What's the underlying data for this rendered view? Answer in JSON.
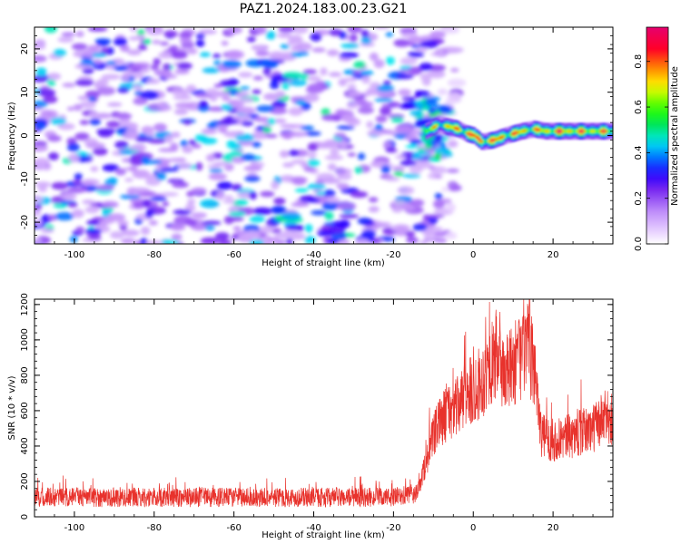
{
  "title": "PAZ1.2024.183.00.23.G21",
  "chart_data": [
    {
      "type": "heatmap",
      "xlabel": "Height of straight line (km)",
      "ylabel": "Frequency (Hz)",
      "xlim": [
        -110,
        35
      ],
      "ylim": [
        -25,
        25
      ],
      "x_ticks": [
        -100,
        -80,
        -60,
        -40,
        -20,
        0,
        20
      ],
      "y_ticks": [
        -20,
        -10,
        0,
        10,
        20
      ],
      "colorbar": {
        "label": "Normalized spectral amplitude",
        "range": [
          0.0,
          0.95
        ],
        "ticks": [
          0.0,
          0.2,
          0.4,
          0.6,
          0.8
        ],
        "tick_labels": [
          "0.0",
          "0.2",
          "0.4",
          "0.6",
          "0.8"
        ],
        "colormap": "gist_ncar_r"
      },
      "features": {
        "noise_region_x": [
          -110,
          -8
        ],
        "noise_amplitude": [
          0.1,
          0.5
        ],
        "signal_track": [
          [
            -12,
            1.0,
            0.7
          ],
          [
            -9,
            2.5,
            0.75
          ],
          [
            -6,
            2.0,
            0.8
          ],
          [
            -4,
            1.5,
            0.85
          ],
          [
            -2,
            0.5,
            0.9
          ],
          [
            0,
            0.0,
            0.95
          ],
          [
            2,
            -1.5,
            0.9
          ],
          [
            5,
            -1.0,
            0.9
          ],
          [
            8,
            0.0,
            0.85
          ],
          [
            12,
            1.0,
            0.85
          ],
          [
            15,
            1.5,
            0.8
          ],
          [
            18,
            1.0,
            0.85
          ],
          [
            22,
            1.0,
            0.9
          ],
          [
            26,
            1.0,
            0.85
          ],
          [
            30,
            1.0,
            0.85
          ],
          [
            35,
            1.0,
            0.8
          ]
        ]
      }
    },
    {
      "type": "line",
      "xlabel": "Height of straight line (km)",
      "ylabel": "SNR (10 * v/v)",
      "xlim": [
        -110,
        35
      ],
      "ylim": [
        0,
        1230
      ],
      "x_ticks": [
        -100,
        -80,
        -60,
        -40,
        -20,
        0,
        20
      ],
      "y_ticks": [
        0,
        200,
        400,
        600,
        800,
        1000,
        1200
      ],
      "color": "#e8322c",
      "envelope": {
        "x": [
          -110,
          -20,
          -14,
          -12,
          -10,
          -8,
          -6,
          -4,
          -2,
          0,
          2,
          4,
          6,
          8,
          10,
          12,
          14,
          16,
          17,
          20,
          25,
          30,
          33,
          35
        ],
        "y": [
          110,
          110,
          130,
          300,
          450,
          550,
          600,
          620,
          680,
          720,
          760,
          850,
          900,
          800,
          850,
          920,
          950,
          750,
          460,
          430,
          460,
          500,
          560,
          560
        ]
      }
    }
  ]
}
